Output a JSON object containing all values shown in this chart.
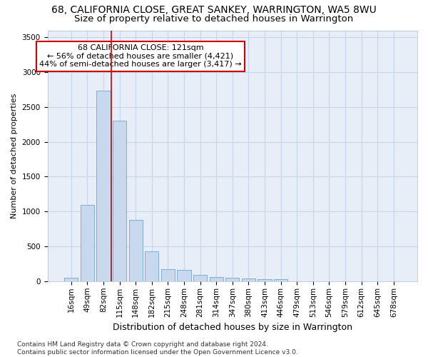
{
  "title": "68, CALIFORNIA CLOSE, GREAT SANKEY, WARRINGTON, WA5 8WU",
  "subtitle": "Size of property relative to detached houses in Warrington",
  "xlabel": "Distribution of detached houses by size in Warrington",
  "ylabel": "Number of detached properties",
  "bar_color": "#c9d9ed",
  "bar_edge_color": "#7bafd4",
  "vline_color": "#cc0000",
  "annotation_line1": "68 CALIFORNIA CLOSE: 121sqm",
  "annotation_line2": "← 56% of detached houses are smaller (4,421)",
  "annotation_line3": "44% of semi-detached houses are larger (3,417) →",
  "annotation_box_color": "#ffffff",
  "annotation_box_edge": "#cc0000",
  "categories": [
    "16sqm",
    "49sqm",
    "82sqm",
    "115sqm",
    "148sqm",
    "182sqm",
    "215sqm",
    "248sqm",
    "281sqm",
    "314sqm",
    "347sqm",
    "380sqm",
    "413sqm",
    "446sqm",
    "479sqm",
    "513sqm",
    "546sqm",
    "579sqm",
    "612sqm",
    "645sqm",
    "678sqm"
  ],
  "values": [
    50,
    1100,
    2730,
    2300,
    880,
    430,
    175,
    165,
    90,
    65,
    50,
    45,
    30,
    25,
    0,
    0,
    0,
    0,
    0,
    0,
    0
  ],
  "ylim": [
    0,
    3600
  ],
  "yticks": [
    0,
    500,
    1000,
    1500,
    2000,
    2500,
    3000,
    3500
  ],
  "grid_color": "#c8d4e8",
  "background_color": "#e8eef8",
  "footer": "Contains HM Land Registry data © Crown copyright and database right 2024.\nContains public sector information licensed under the Open Government Licence v3.0.",
  "title_fontsize": 10,
  "subtitle_fontsize": 9.5,
  "xlabel_fontsize": 9,
  "ylabel_fontsize": 8,
  "tick_fontsize": 7.5,
  "footer_fontsize": 6.5,
  "annot_fontsize": 8
}
